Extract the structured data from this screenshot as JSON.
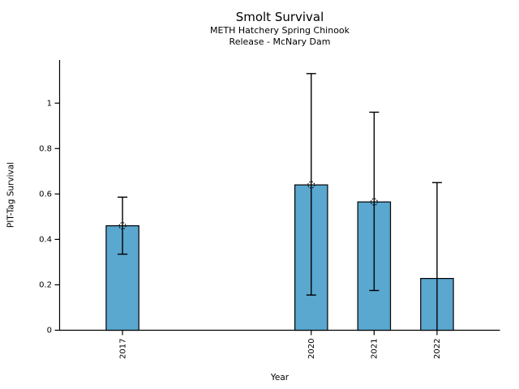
{
  "figure": {
    "title": "Smolt Survival",
    "subtitle_line1": "METH Hatchery Spring Chinook",
    "subtitle_line2": "Release - McNary Dam"
  },
  "chart_data": {
    "type": "bar",
    "title": "Smolt Survival",
    "subtitle": [
      "METH Hatchery Spring Chinook",
      "Release - McNary Dam"
    ],
    "xlabel": "Year",
    "ylabel": "PIT-Tag Survival",
    "xlim": [
      2016,
      2023
    ],
    "ylim": [
      0,
      1.19
    ],
    "ytick_values": [
      0,
      0.2,
      0.4,
      0.6,
      0.8,
      1
    ],
    "ytick_labels": [
      "0",
      "0.2",
      "0.4",
      "0.6",
      "0.8",
      "1"
    ],
    "categories": [
      "2017",
      "2020",
      "2021",
      "2022"
    ],
    "x": [
      2017,
      2020,
      2021,
      2022
    ],
    "values": [
      0.46,
      0.64,
      0.565,
      0.228
    ],
    "error_low": [
      0.335,
      0.155,
      0.175,
      0.0
    ],
    "error_high": [
      0.586,
      1.13,
      0.96,
      0.65
    ],
    "point_marker": [
      true,
      true,
      true,
      false
    ],
    "bar_width_years": 0.52,
    "grid": false,
    "legend": "none",
    "colors": {
      "bar_fill": "#5AA7D0",
      "bar_edge": "#000000",
      "error_bar": "#000000",
      "axis": "#000000"
    }
  }
}
